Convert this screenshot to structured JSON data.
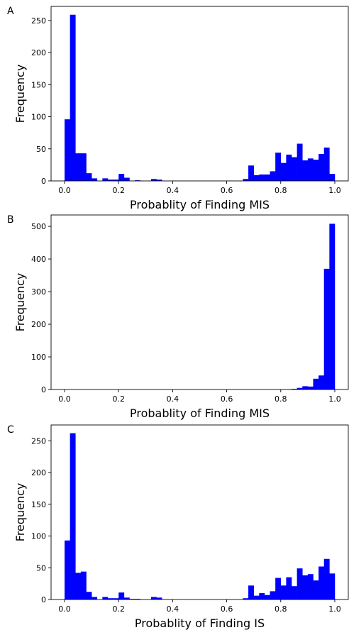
{
  "chart_data": [
    {
      "panel_label": "A",
      "type": "bar",
      "xlabel": "Probablity of Finding MIS",
      "ylabel": "Frequency",
      "xlim": [
        -0.05,
        1.05
      ],
      "ylim": [
        0,
        272
      ],
      "xticks": [
        "0.0",
        "0.2",
        "0.4",
        "0.6",
        "0.8",
        "1.0"
      ],
      "yticks": [
        "0",
        "50",
        "100",
        "150",
        "200",
        "250"
      ],
      "bin_start": 0.0,
      "bin_width": 0.02,
      "values": [
        96,
        259,
        43,
        43,
        12,
        4,
        0,
        4,
        2,
        2,
        11,
        5,
        0,
        1,
        0,
        0,
        3,
        2,
        0,
        0,
        0,
        0,
        0,
        0,
        0,
        0,
        0,
        0,
        0,
        0,
        0,
        0,
        0,
        3,
        24,
        9,
        10,
        10,
        15,
        44,
        28,
        41,
        37,
        58,
        32,
        35,
        33,
        42,
        52,
        11
      ],
      "bar_color": "#0000ff"
    },
    {
      "panel_label": "B",
      "type": "bar",
      "xlabel": "Probablity of Finding MIS",
      "ylabel": "Frequency",
      "xlim": [
        -0.05,
        1.05
      ],
      "ylim": [
        0,
        535
      ],
      "xticks": [
        "0.0",
        "0.2",
        "0.4",
        "0.6",
        "0.8",
        "1.0"
      ],
      "yticks": [
        "0",
        "100",
        "200",
        "300",
        "400",
        "500"
      ],
      "bin_start": 0.0,
      "bin_width": 0.02,
      "values": [
        0,
        0,
        0,
        0,
        0,
        0,
        0,
        0,
        0,
        0,
        0,
        0,
        0,
        0,
        0,
        0,
        0,
        0,
        0,
        0,
        0,
        0,
        0,
        0,
        0,
        0,
        0,
        0,
        0,
        0,
        0,
        0,
        0,
        0,
        0,
        0,
        0,
        0,
        0,
        0,
        0,
        1,
        2,
        5,
        10,
        9,
        33,
        43,
        370,
        508
      ],
      "bar_color": "#0000ff"
    },
    {
      "panel_label": "C",
      "type": "bar",
      "xlabel": "Probablity of Finding IS",
      "ylabel": "Frequency",
      "xlim": [
        -0.05,
        1.05
      ],
      "ylim": [
        0,
        275
      ],
      "xticks": [
        "0.0",
        "0.2",
        "0.4",
        "0.6",
        "0.8",
        "1.0"
      ],
      "yticks": [
        "0",
        "50",
        "100",
        "150",
        "200",
        "250"
      ],
      "bin_start": 0.0,
      "bin_width": 0.02,
      "values": [
        93,
        262,
        42,
        44,
        12,
        4,
        0,
        4,
        2,
        2,
        11,
        3,
        1,
        1,
        0,
        0,
        4,
        3,
        0,
        0,
        0,
        0,
        0,
        0,
        0,
        0,
        0,
        0,
        0,
        0,
        0,
        0,
        0,
        2,
        22,
        6,
        10,
        7,
        13,
        34,
        22,
        35,
        21,
        49,
        38,
        40,
        30,
        52,
        64,
        41
      ],
      "bar_color": "#0000ff"
    }
  ]
}
